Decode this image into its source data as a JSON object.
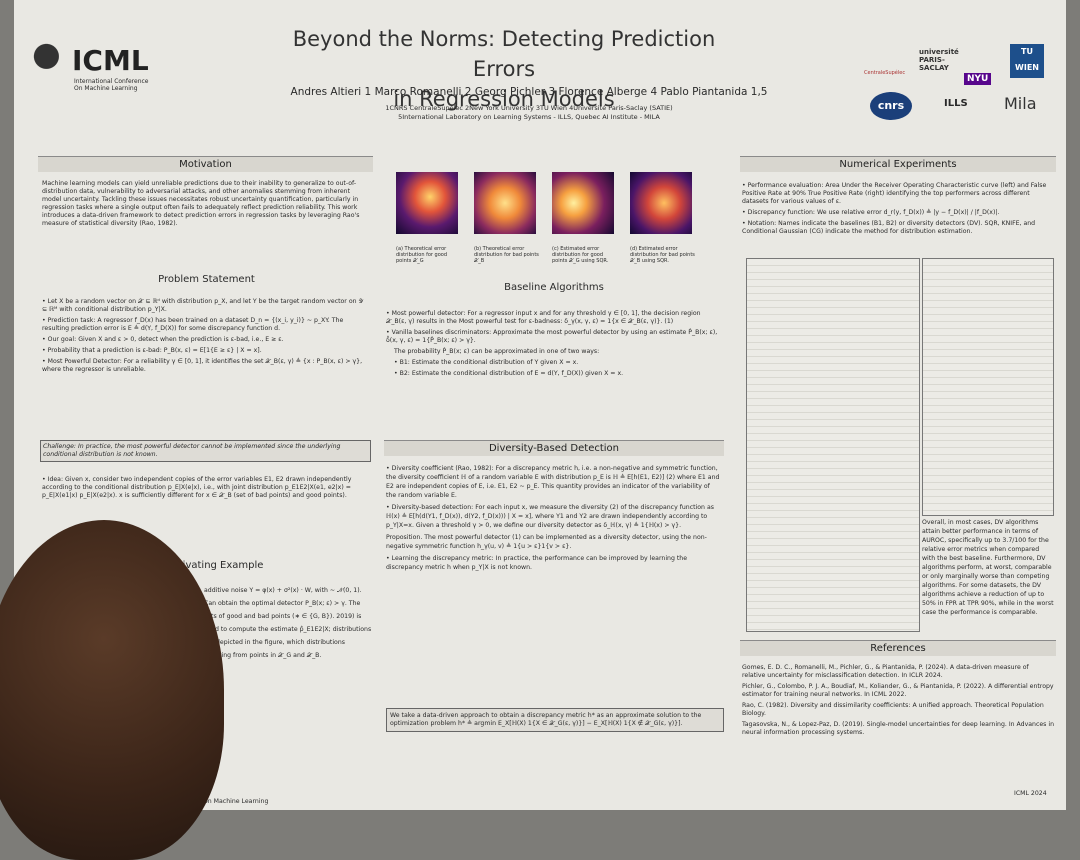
{
  "header": {
    "logo": "ICML",
    "logo_sub": [
      "International Conference",
      "On Machine Learning"
    ],
    "title": [
      "Beyond the Norms: Detecting Prediction Errors",
      "in Regression Models"
    ],
    "authors": "Andres Altieri 1   Marco Romanelli 2   Georg Pichler 3   Florence Alberge 4   Pablo Piantanida 1,5",
    "affiliations": [
      "1CNRS CentraleSupélec   2New York University   3TU Wien   4Université Paris-Saclay (SATIE)",
      "5International Laboratory on Learning Systems - ILLS, Quebec AI Institute - MILA"
    ],
    "partners": [
      "CentraleSupélec",
      "université PARIS-SACLAY",
      "NYU",
      "TU WIEN",
      "cnrs",
      "ILLS",
      "Mila"
    ]
  },
  "motivation": {
    "heading": "Motivation",
    "text": "Machine learning models can yield unreliable predictions due to their inability to generalize to out-of-distribution data, vulnerability to adversarial attacks, and other anomalies stemming from inherent model uncertainty. Tackling these issues necessitates robust uncertainty quantification, particularly in regression tasks where a single output often fails to adequately reflect prediction reliability. This work introduces a data-driven framework to detect prediction errors in regression tasks by leveraging Rao's measure of statistical diversity (Rao, 1982)."
  },
  "problem": {
    "heading": "Problem Statement",
    "bullets": [
      "Let X be a random vector on 𝒳 ⊆ ℝᵈ with distribution p_X, and let Y be the target random vector on 𝒴 ⊆ ℝᴹ with conditional distribution p_Y|X.",
      "Prediction task: A regressor f_D(x) has been trained on a dataset D_n = {(x_i, y_i)} ~ p_XY. The resulting prediction error is E ≜ d(Y, f_D(X)) for some discrepancy function d.",
      "Our goal: Given X and ε > 0, detect when the prediction is ε-bad, i.e., E ≥ ε.",
      "Probability that a prediction is ε-bad: P_B(x, ε) = E[1{E ≥ ε} | X = x].",
      "Most Powerful Detector: For a reliability γ ∈ [0, 1], it identifies the set 𝒳_B(ε, γ) ≜ {x : P_B(x, ε) > γ}, where the regressor is unreliable."
    ],
    "challenge": "Challenge: In practice, the most powerful detector cannot be implemented since the underlying conditional distribution is not known."
  },
  "idea": {
    "bullet": "Idea: Given x, consider two independent copies of the error variables E1, E2 drawn independently according to the conditional distribution p_E|X(e|x), i.e., with joint distribution p_E1E2|X(e1, e2|x) = p_E|X(e1|x) p_E|X(e2|x). x is sufficiently different for x ∈ 𝒳_B (set of bad points) and good points)."
  },
  "motivating": {
    "heading": "Motivating Example",
    "text": "additive noise Y = φ(x) + σ²(x) · W, with ~ 𝒩(0, 1). Can obtain the optimal detector P_B(x; ε) > γ. The sets of good and bad points (∗ ∈ {G, B}). 2019) is used to compute the estimate p̂_E1E2|X; distributions are depicted in the figure, which distributions resulting from points in 𝒳_G and 𝒳_B.",
    "footer": "on Machine Learning"
  },
  "figure": {
    "captions": [
      "(a) Theoretical error distribution for good points 𝒳_G",
      "(b) Theoretical error distribution for bad points 𝒳_B",
      "(c) Estimated error distribution for good points 𝒳_G using SQR.",
      "(d) Estimated error distribution for bad points 𝒳_B using SQR."
    ]
  },
  "baseline": {
    "heading": "Baseline Algorithms",
    "bullets": [
      "Most powerful detector: For a regressor input x and for any threshold γ ∈ [0, 1], the decision region 𝒳_B(ε, γ) results in the Most powerful test for ε-badness: δ_γ(x, γ, ε) = 1{x ∈ 𝒳_B(ε, γ)}.   (1)",
      "Vanilla baselines discriminators: Approximate the most powerful detector by using an estimate P̂_B(x; ε), δ̂(x, γ, ε) = 1{P̂_B(x; ε) > γ}.",
      "The probability P̂_B(x; ε) can be approximated in one of two ways:",
      "B1: Estimate the conditional distribution of Y given X = x.",
      "B2: Estimate the conditional distribution of E = d(Y, f_D(X)) given X = x."
    ]
  },
  "diversity": {
    "heading": "Diversity-Based Detection",
    "bullets": [
      "Diversity coefficient (Rao, 1982): For a discrepancy metric h, i.e. a non-negative and symmetric function, the diversity coefficient ℍ of a random variable E with distribution p_E is ℍ ≜ E[h(E1, E2)]   (2) where E1 and E2 are independent copies of E, i.e. E1, E2 ~ p_E. This quantity provides an indicator of the variability of the random variable E.",
      "Diversity-based detection: For each input x, we measure the diversity (2) of the discrepancy function as ℍ(x) ≜ E[h(d(Y1, f_D(x)), d(Y2, f_D(x))) | X = x], where Y1 and Y2 are drawn independently according to p_Y|X=x. Given a threshold γ > 0, we define our diversity detector as δ_ℍ(x, γ) ≜ 1{ℍ(x) > γ}.",
      "Proposition. The most powerful detector (1) can be implemented as a diversity detector, using the non-negative symmetric function h_γ(u, v) ≜ 1{u > ε}1{v > ε}.",
      "Learning the discrepancy metric: In practice, the performance can be improved by learning the discrepancy metric h when p_Y|X is not known."
    ],
    "box": "We take a data-driven approach to obtain a discrepancy metric h* as an approximate solution to the optimization problem h* ≜ argmin E_X[ℍ(X) 1{X ∈ 𝒳_G(ε, γ)}] − E_X[ℍ(X) 1{X ∉ 𝒳_G(ε, γ)}]."
  },
  "numerical": {
    "heading": "Numerical Experiments",
    "bullets": [
      "Performance evaluation: Area Under the Receiver Operating Characteristic curve (left) and False Positive Rate at 90% True Positive Rate (right) identifying the top performers across different datasets for various values of ε.",
      "Discrepancy function: We use relative error d_r(y, f_D(x)) ≜ |y − f_D(x)| / |f_D(x)|.",
      "Notation: Names indicate the baselines (B1, B2) or diversity detectors (DV). SQR, KNIFE, and Conditional Gaussian (CG) indicate the method for distribution estimation."
    ],
    "conclusion": "Overall, in most cases, DV algorithms attain better performance in terms of AUROC, specifically up to 3.7/100 for the relative error metrics when compared with the best baseline. Furthermore, DV algorithms perform, at worst, comparable or only marginally worse than competing algorithms. For some datasets, the DV algorithms achieve a reduction of up to 50% in FPR at TPR 90%, while in the worst case the performance is comparable."
  },
  "references": {
    "heading": "References",
    "items": [
      "Gomes, E. D. C., Romanelli, M., Pichler, G., & Piantanida, P. (2024). A data-driven measure of relative uncertainty for misclassification detection. In ICLR 2024.",
      "Pichler, G., Colombo, P. J. A., Boudiaf, M., Koliander, G., & Piantanida, P. (2022). A differential entropy estimator for training neural networks. In ICML 2022.",
      "Rao, C. (1982). Diversity and dissimilarity coefficients: A unified approach. Theoretical Population Biology.",
      "Tagasovska, N., & Lopez-Paz, D. (2019). Single-model uncertainties for deep learning. In Advances in neural information processing systems."
    ],
    "footer": "ICML 2024"
  }
}
